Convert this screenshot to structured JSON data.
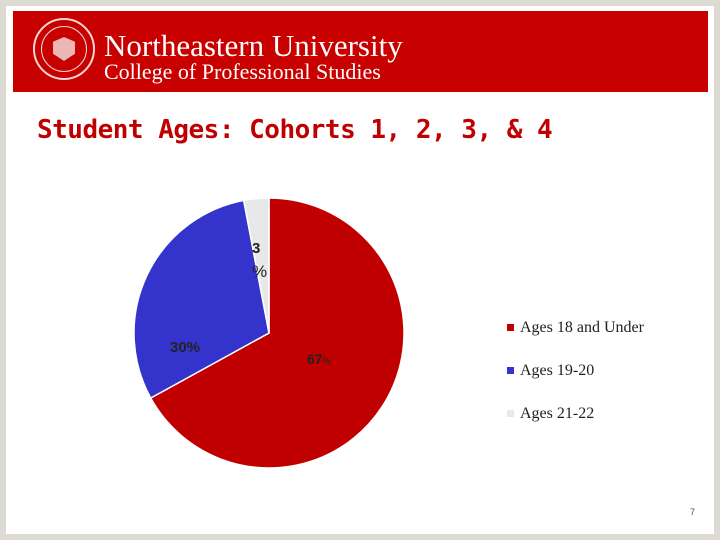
{
  "header": {
    "university": "Northeastern University",
    "college": "College of Professional Studies"
  },
  "slide": {
    "title": "Student Ages: Cohorts 1, 2, 3, & 4",
    "page_number": "7"
  },
  "colors": {
    "brand_red": "#c90000",
    "title_red": "#c00000",
    "slice_18_under": "#c00000",
    "slice_19_20": "#3434cc",
    "slice_21_22": "#e8e8e8"
  },
  "chart_data": {
    "type": "pie",
    "title": "",
    "start": "top",
    "direction": "clockwise",
    "legend_position": "right",
    "slices": [
      {
        "label": "Ages 18 and Under",
        "value": 67,
        "color": "#c00000",
        "data_label": "67",
        "data_label_suffix": "%"
      },
      {
        "label": "Ages 19-20",
        "value": 30,
        "color": "#3434cc",
        "data_label": "30%",
        "data_label_suffix": ""
      },
      {
        "label": "Ages 21-22",
        "value": 3,
        "color": "#e8e8e8",
        "data_label": "3",
        "data_label_suffix": "%"
      }
    ]
  }
}
